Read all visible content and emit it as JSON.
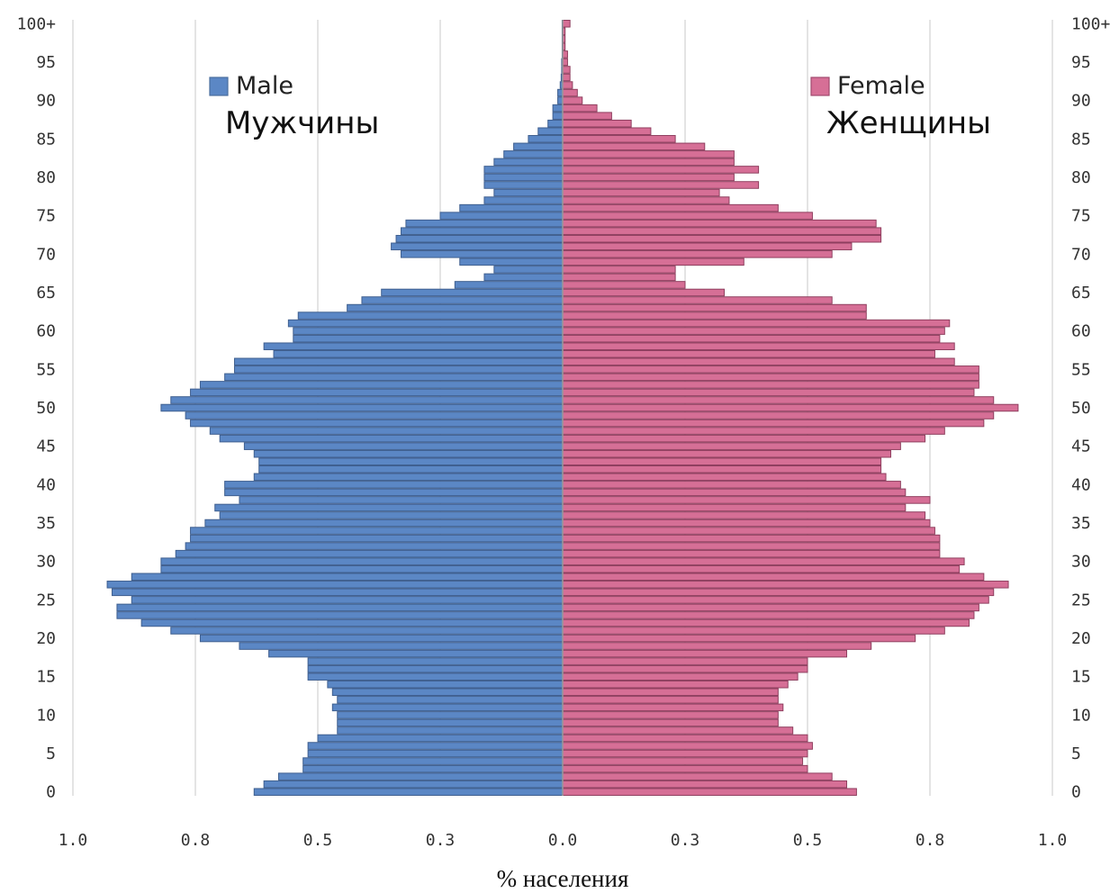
{
  "chart_data": {
    "type": "bar",
    "orientation": "horizontal-population-pyramid",
    "xlabel": "% населения",
    "x_ticks": [
      "1.0",
      "0.8",
      "0.5",
      "0.3",
      "0.0",
      "0.3",
      "0.5",
      "0.8",
      "1.0"
    ],
    "x_range": [
      -1.0,
      1.0
    ],
    "y_ticks": [
      "0",
      "5",
      "10",
      "15",
      "20",
      "25",
      "30",
      "35",
      "40",
      "45",
      "50",
      "55",
      "60",
      "65",
      "70",
      "75",
      "80",
      "85",
      "90",
      "95",
      "100+"
    ],
    "y_range": [
      0,
      100
    ],
    "grid": "vertical",
    "series": [
      {
        "name": "Male",
        "caption": "Мужчины",
        "color": "#5b87c5",
        "values": [
          0.63,
          0.61,
          0.58,
          0.53,
          0.53,
          0.52,
          0.52,
          0.5,
          0.46,
          0.46,
          0.46,
          0.47,
          0.46,
          0.47,
          0.48,
          0.52,
          0.52,
          0.52,
          0.6,
          0.66,
          0.74,
          0.8,
          0.86,
          0.91,
          0.91,
          0.88,
          0.92,
          0.93,
          0.88,
          0.82,
          0.82,
          0.79,
          0.77,
          0.76,
          0.76,
          0.73,
          0.7,
          0.71,
          0.66,
          0.69,
          0.69,
          0.63,
          0.62,
          0.62,
          0.63,
          0.65,
          0.7,
          0.72,
          0.76,
          0.77,
          0.82,
          0.8,
          0.76,
          0.74,
          0.69,
          0.67,
          0.67,
          0.59,
          0.61,
          0.55,
          0.55,
          0.56,
          0.54,
          0.44,
          0.41,
          0.37,
          0.22,
          0.16,
          0.14,
          0.21,
          0.33,
          0.35,
          0.34,
          0.33,
          0.32,
          0.25,
          0.21,
          0.16,
          0.14,
          0.16,
          0.16,
          0.16,
          0.14,
          0.12,
          0.1,
          0.07,
          0.05,
          0.03,
          0.02,
          0.02,
          0.01,
          0.01,
          0.005,
          0.003,
          0.002,
          0.002,
          0.001,
          0.001,
          0.001,
          0.001,
          0.001
        ]
      },
      {
        "name": "Female",
        "caption": "Женщины",
        "color": "#d66f96",
        "values": [
          0.6,
          0.58,
          0.55,
          0.5,
          0.49,
          0.5,
          0.51,
          0.5,
          0.47,
          0.44,
          0.44,
          0.45,
          0.44,
          0.44,
          0.46,
          0.48,
          0.5,
          0.5,
          0.58,
          0.63,
          0.72,
          0.78,
          0.83,
          0.84,
          0.85,
          0.87,
          0.88,
          0.91,
          0.86,
          0.81,
          0.82,
          0.77,
          0.77,
          0.77,
          0.76,
          0.75,
          0.74,
          0.7,
          0.75,
          0.7,
          0.69,
          0.66,
          0.65,
          0.65,
          0.67,
          0.69,
          0.74,
          0.78,
          0.86,
          0.88,
          0.93,
          0.88,
          0.84,
          0.85,
          0.85,
          0.85,
          0.8,
          0.76,
          0.8,
          0.77,
          0.78,
          0.79,
          0.62,
          0.62,
          0.55,
          0.33,
          0.25,
          0.23,
          0.23,
          0.37,
          0.55,
          0.59,
          0.65,
          0.65,
          0.64,
          0.51,
          0.44,
          0.34,
          0.32,
          0.4,
          0.35,
          0.4,
          0.35,
          0.35,
          0.29,
          0.23,
          0.18,
          0.14,
          0.1,
          0.07,
          0.04,
          0.03,
          0.02,
          0.015,
          0.015,
          0.01,
          0.01,
          0.005,
          0.005,
          0.005,
          0.015
        ]
      }
    ]
  }
}
